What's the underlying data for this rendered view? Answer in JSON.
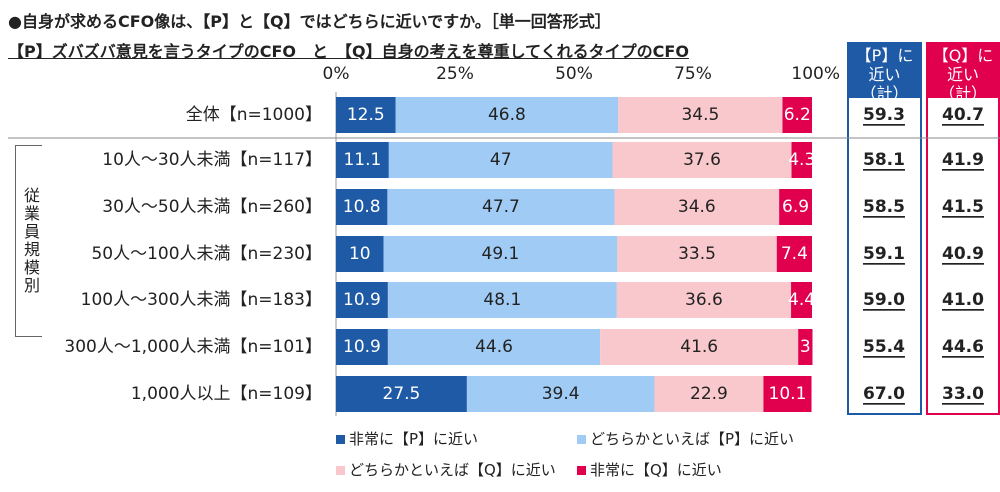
{
  "title": "●自身が求めるCFO像は、【P】と【Q】ではどちらに近いですか。［単一回答形式］",
  "subtitle": "【P】ズバズバ意見を言うタイプのCFO　と　【Q】自身の考えを尊重してくれるタイプのCFO",
  "group_label": "従業員規模別",
  "summary_headers": {
    "p": "【P】に近い（計）",
    "q": "【Q】に近い（計）"
  },
  "colors": {
    "very_p": "#1f5aa6",
    "some_p": "#9fcbf4",
    "some_q": "#f8c8cc",
    "very_q": "#e0004d"
  },
  "chart_data": {
    "type": "bar",
    "stacked": true,
    "orientation": "horizontal",
    "xlim": [
      0,
      100
    ],
    "x_ticks": [
      "0%",
      "25%",
      "50%",
      "75%",
      "100%"
    ],
    "categories": [
      "全体【n=1000】",
      "10人～30人未満【n=117】",
      "30人～50人未満【n=260】",
      "50人～100人未満【n=230】",
      "100人～300人未満【n=183】",
      "300人～1,000人未満【n=101】",
      "1,000人以上【n=109】"
    ],
    "series": [
      {
        "name": "非常に【P】に近い",
        "values": [
          12.5,
          11.1,
          10.8,
          10.0,
          10.9,
          10.9,
          27.5
        ]
      },
      {
        "name": "どちらかといえば【P】に近い",
        "values": [
          46.8,
          47.0,
          47.7,
          49.1,
          48.1,
          44.6,
          39.4
        ]
      },
      {
        "name": "どちらかといえば【Q】に近い",
        "values": [
          34.5,
          37.6,
          34.6,
          33.5,
          36.6,
          41.6,
          22.9
        ]
      },
      {
        "name": "非常に【Q】に近い",
        "values": [
          6.2,
          4.3,
          6.9,
          7.4,
          4.4,
          3.0,
          10.1
        ]
      }
    ],
    "p_total": [
      "59.3",
      "58.1",
      "58.5",
      "59.1",
      "59.0",
      "55.4",
      "67.0"
    ],
    "q_total": [
      "40.7",
      "41.9",
      "41.5",
      "40.9",
      "41.0",
      "44.6",
      "33.0"
    ],
    "legend_position": "bottom"
  }
}
